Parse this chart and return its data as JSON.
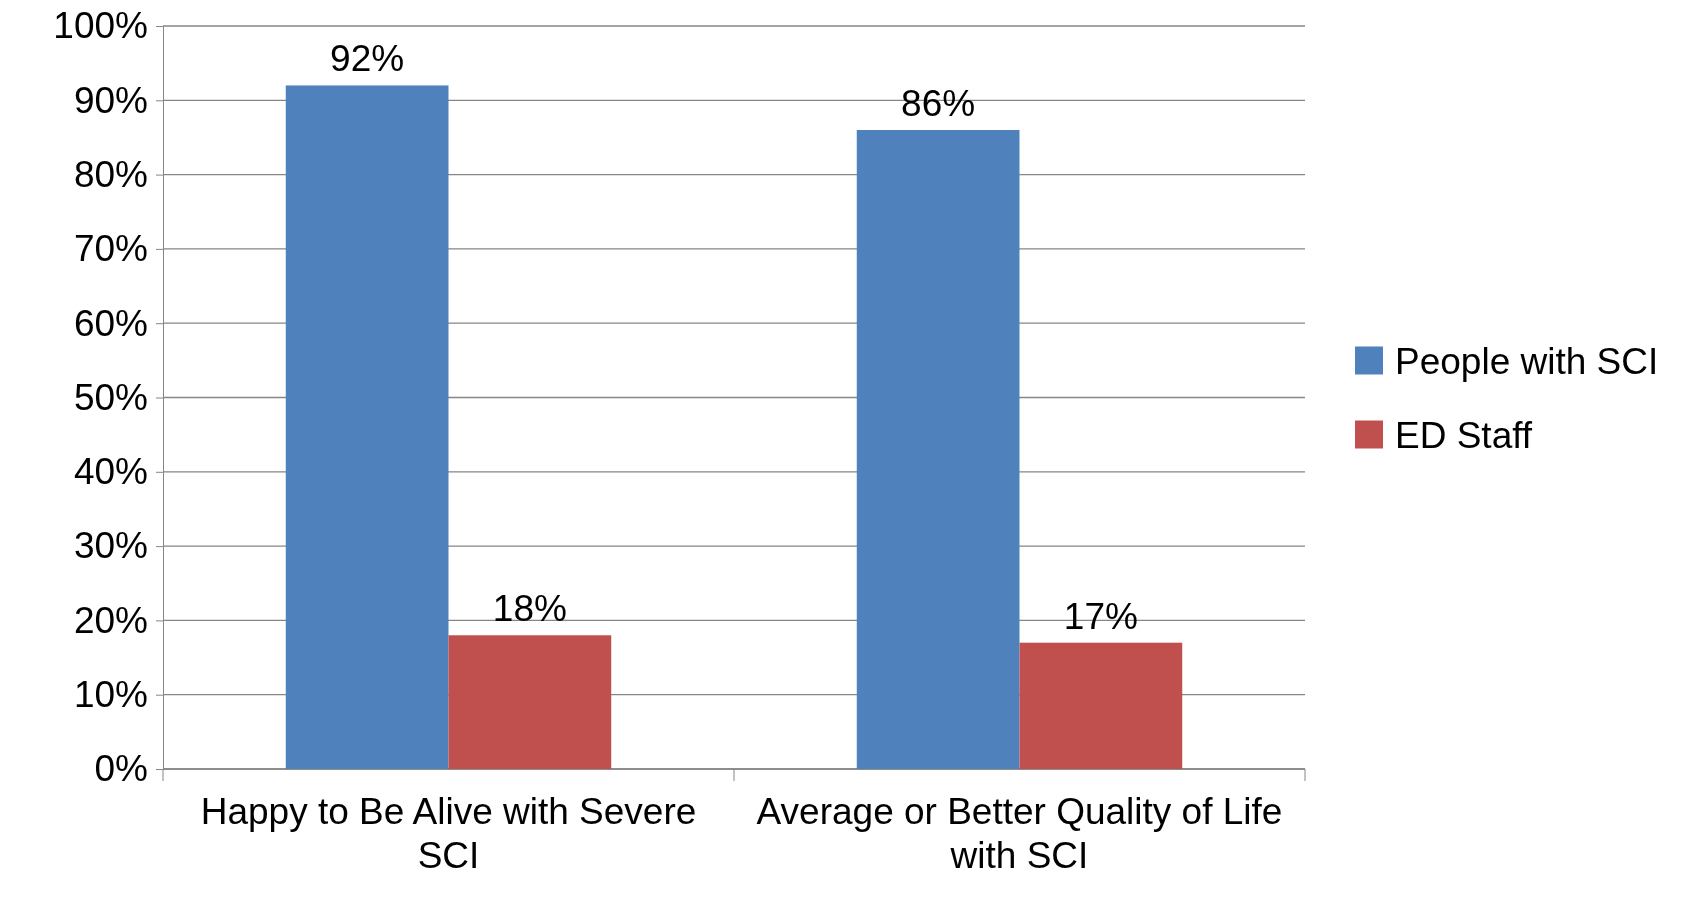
{
  "chart_data": {
    "type": "bar",
    "categories": [
      "Happy to Be Alive with Severe SCI",
      "Average or Better Quality of Life with SCI"
    ],
    "series": [
      {
        "name": "People with SCI",
        "color": "#4f81bd",
        "values": [
          92,
          86
        ]
      },
      {
        "name": "ED Staff",
        "color": "#c0504d",
        "values": [
          18,
          17
        ]
      }
    ],
    "ylim": [
      0,
      100
    ],
    "yticks": [
      {
        "value": 0,
        "label": "0%"
      },
      {
        "value": 10,
        "label": "10%"
      },
      {
        "value": 20,
        "label": "20%"
      },
      {
        "value": 30,
        "label": "30%"
      },
      {
        "value": 40,
        "label": "40%"
      },
      {
        "value": 50,
        "label": "50%"
      },
      {
        "value": 60,
        "label": "60%"
      },
      {
        "value": 70,
        "label": "70%"
      },
      {
        "value": 80,
        "label": "80%"
      },
      {
        "value": 90,
        "label": "90%"
      },
      {
        "value": 100,
        "label": "100%"
      }
    ],
    "value_labels": [
      [
        "92%",
        "86%"
      ],
      [
        "18%",
        "17%"
      ]
    ],
    "grid": "y",
    "legend": "right"
  }
}
